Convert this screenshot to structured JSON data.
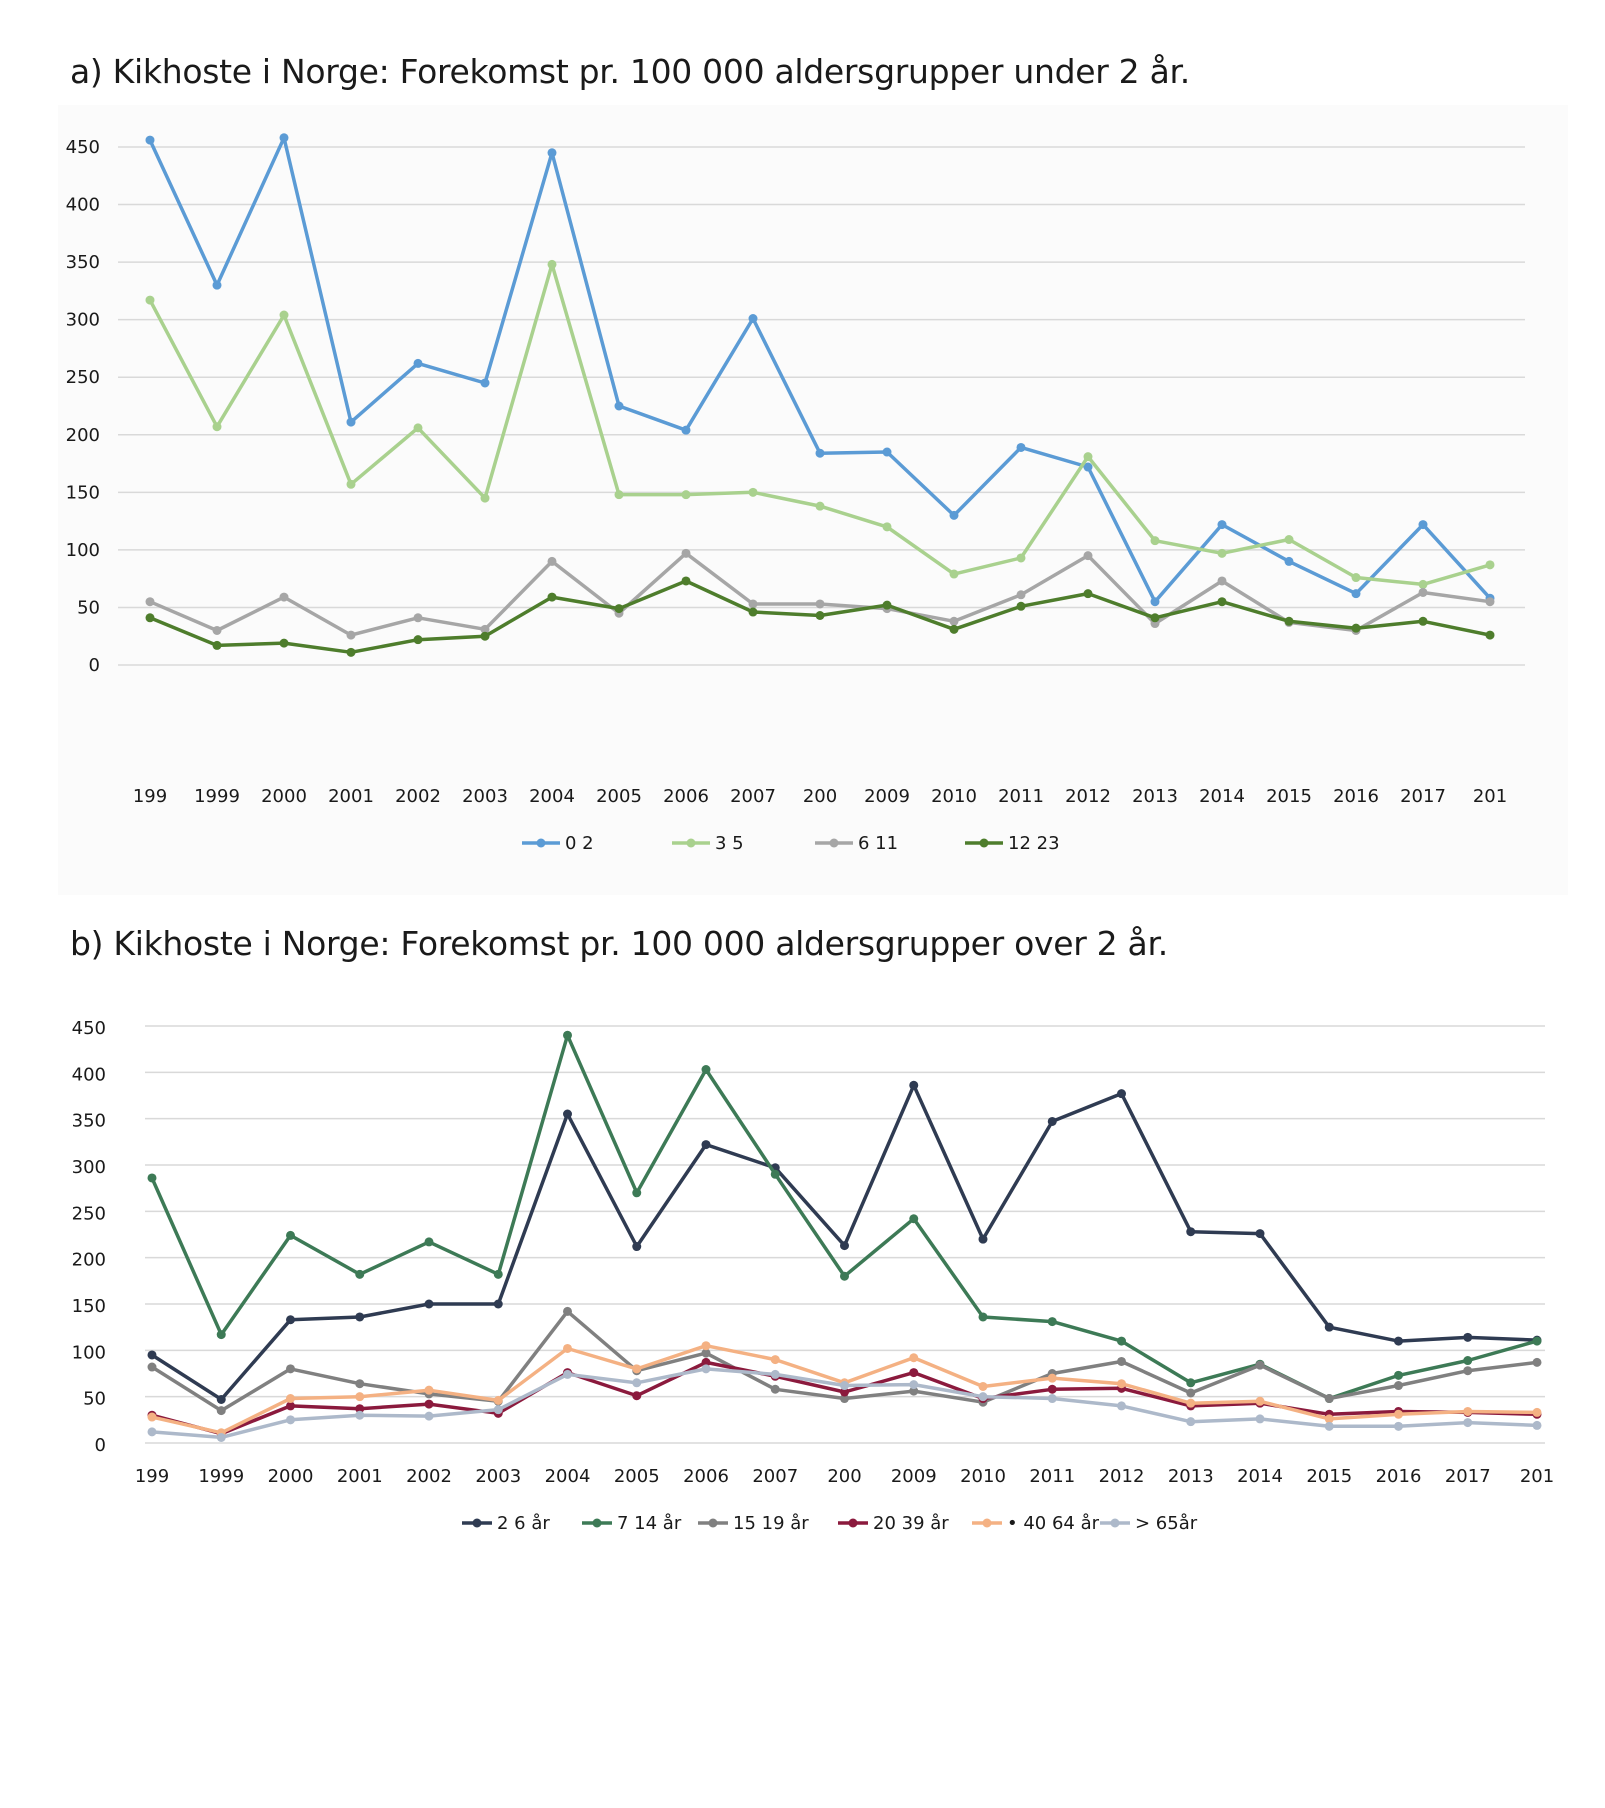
{
  "chart_data": [
    {
      "type": "line",
      "title": "a) Kikhoste i Norge: Forekomst pr. 100 000 aldersgrupper under 2 år.",
      "xlabel": "",
      "ylabel": "",
      "ylim": [
        0,
        450
      ],
      "y_ticks": [
        "0",
        "50",
        "100",
        "150",
        "200",
        "250",
        "300",
        "350",
        "400",
        "450"
      ],
      "x_ticks": [
        "199",
        "1999",
        "2000",
        "2001",
        "2002",
        "2003",
        "2004",
        "2005",
        "2006",
        "2007",
        "200",
        "2009",
        "2010",
        "2011",
        "2012",
        "2013",
        "2014",
        "2015",
        "2016",
        "2017",
        "201"
      ],
      "grid": true,
      "legend_position": "bottom",
      "series": [
        {
          "name": "0  2",
          "color": "#5b9bd5",
          "values": [
            456,
            330,
            458,
            211,
            262,
            245,
            445,
            225,
            204,
            301,
            184,
            185,
            130,
            189,
            172,
            55,
            122,
            90,
            62,
            122,
            58
          ]
        },
        {
          "name": "3  5",
          "color": "#a9d18e",
          "values": [
            317,
            207,
            304,
            157,
            206,
            145,
            348,
            148,
            148,
            150,
            138,
            120,
            79,
            93,
            181,
            108,
            97,
            109,
            76,
            70,
            87
          ]
        },
        {
          "name": "6  11",
          "color": "#a6a6a6",
          "values": [
            55,
            30,
            59,
            26,
            41,
            31,
            90,
            45,
            97,
            53,
            53,
            49,
            38,
            61,
            95,
            36,
            73,
            37,
            30,
            63,
            55
          ]
        },
        {
          "name": "12  23",
          "color": "#4e7d2c",
          "values": [
            41,
            17,
            19,
            11,
            22,
            25,
            59,
            49,
            73,
            46,
            43,
            52,
            31,
            51,
            62,
            41,
            55,
            38,
            32,
            38,
            26
          ]
        }
      ]
    },
    {
      "type": "line",
      "title": "b) Kikhoste i Norge: Forekomst pr. 100 000 aldersgrupper over 2 år.",
      "xlabel": "",
      "ylabel": "",
      "ylim": [
        0,
        450
      ],
      "y_ticks": [
        "0",
        "50",
        "100",
        "150",
        "200",
        "250",
        "300",
        "350",
        "400",
        "450"
      ],
      "x_ticks": [
        "199",
        "1999",
        "2000",
        "2001",
        "2002",
        "2003",
        "2004",
        "2005",
        "2006",
        "2007",
        "200",
        "2009",
        "2010",
        "2011",
        "2012",
        "2013",
        "2014",
        "2015",
        "2016",
        "2017",
        "201"
      ],
      "grid": true,
      "legend_position": "bottom",
      "series": [
        {
          "name": "2  6 år",
          "color": "#2f3b52",
          "values": [
            95,
            47,
            133,
            136,
            150,
            150,
            355,
            212,
            322,
            297,
            213,
            386,
            220,
            347,
            377,
            228,
            226,
            125,
            110,
            114,
            111
          ]
        },
        {
          "name": "7  14 år",
          "color": "#3d7a56",
          "values": [
            286,
            117,
            224,
            182,
            217,
            182,
            440,
            270,
            403,
            290,
            180,
            242,
            136,
            131,
            110,
            65,
            85,
            48,
            73,
            89,
            110
          ]
        },
        {
          "name": "15  19 år",
          "color": "#808080",
          "values": [
            82,
            35,
            80,
            64,
            53,
            45,
            142,
            78,
            97,
            58,
            48,
            56,
            44,
            75,
            88,
            54,
            84,
            48,
            62,
            78,
            87
          ]
        },
        {
          "name": "20  39 år",
          "color": "#8b1a3d",
          "values": [
            30,
            10,
            40,
            37,
            42,
            32,
            76,
            51,
            87,
            72,
            55,
            76,
            48,
            58,
            59,
            40,
            43,
            31,
            34,
            33,
            31
          ]
        },
        {
          "name": "40  64 år",
          "color": "#f4b183",
          "values": [
            28,
            11,
            48,
            50,
            57,
            46,
            102,
            80,
            105,
            90,
            65,
            92,
            61,
            70,
            64,
            43,
            45,
            26,
            31,
            34,
            33
          ]
        },
        {
          "name": "65år",
          "color": "#adb9ca",
          "values": [
            12,
            6,
            25,
            30,
            29,
            36,
            74,
            65,
            80,
            74,
            62,
            63,
            50,
            48,
            40,
            23,
            26,
            18,
            18,
            22,
            19
          ]
        }
      ]
    }
  ],
  "legend_b_prefixes": [
    "",
    "",
    "",
    "",
    "•",
    ">"
  ]
}
